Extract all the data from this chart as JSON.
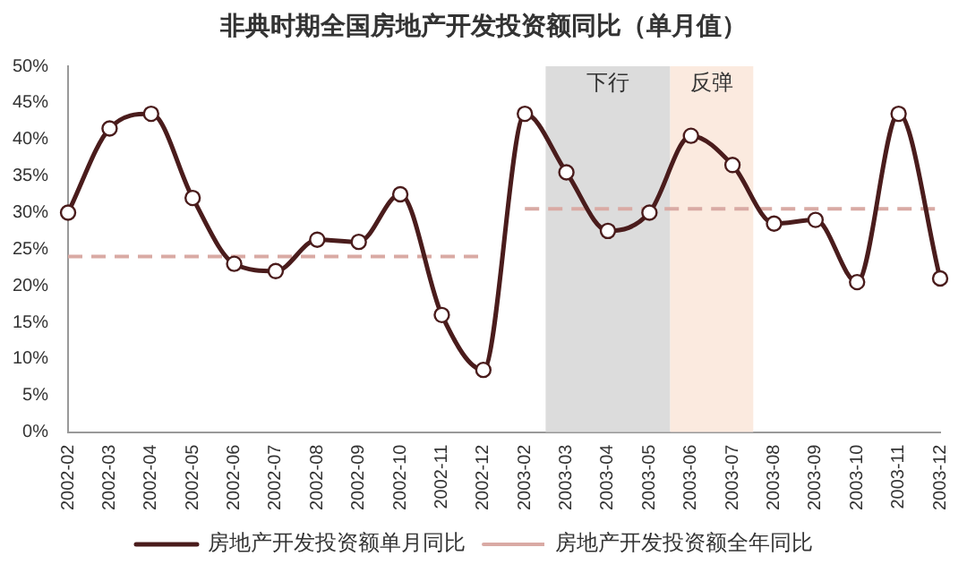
{
  "chart_data": {
    "type": "line",
    "title": "非典时期全国房地产开发投资额同比（单月值）",
    "categories": [
      "2002-02",
      "2002-03",
      "2002-04",
      "2002-05",
      "2002-06",
      "2002-07",
      "2002-08",
      "2002-09",
      "2002-10",
      "2002-11",
      "2002-12",
      "2003-02",
      "2003-03",
      "2003-04",
      "2003-05",
      "2003-06",
      "2003-07",
      "2003-08",
      "2003-09",
      "2003-10",
      "2003-11",
      "2003-12"
    ],
    "series": [
      {
        "name": "房地产开发投资额单月同比",
        "color": "#4a1c1c",
        "marker": "circle",
        "line_style": "solid",
        "values": [
          30,
          41.5,
          43.5,
          32,
          23,
          22,
          26.3,
          26,
          32.5,
          16,
          8.5,
          43.5,
          35.5,
          27.5,
          30,
          40.5,
          36.5,
          28.5,
          29,
          20.5,
          43.5,
          21
        ]
      },
      {
        "name": "房地产开发投资额全年同比",
        "color": "#d9aaa4",
        "marker": "none",
        "line_style": "dashed",
        "values": [
          24,
          24,
          24,
          24,
          24,
          24,
          24,
          24,
          24,
          24,
          24,
          30.5,
          30.5,
          30.5,
          30.5,
          30.5,
          30.5,
          30.5,
          30.5,
          30.5,
          30.5,
          30.5
        ]
      }
    ],
    "ylim": [
      0,
      50
    ],
    "yticks": [
      {
        "value": 0,
        "label": "0%"
      },
      {
        "value": 5,
        "label": "5%"
      },
      {
        "value": 10,
        "label": "10%"
      },
      {
        "value": 15,
        "label": "15%"
      },
      {
        "value": 20,
        "label": "20%"
      },
      {
        "value": 25,
        "label": "25%"
      },
      {
        "value": 30,
        "label": "30%"
      },
      {
        "value": 35,
        "label": "35%"
      },
      {
        "value": 40,
        "label": "40%"
      },
      {
        "value": 45,
        "label": "45%"
      },
      {
        "value": 50,
        "label": "50%"
      }
    ],
    "bands": [
      {
        "axis": "x",
        "from": "2003-03",
        "to": "2003-05",
        "color": "#dcdcdc",
        "label": "下行"
      },
      {
        "axis": "x",
        "from": "2003-06",
        "to": "2003-07",
        "color": "#fbeadf",
        "label": "反弹"
      }
    ],
    "grid": false,
    "legend": "bottom"
  }
}
